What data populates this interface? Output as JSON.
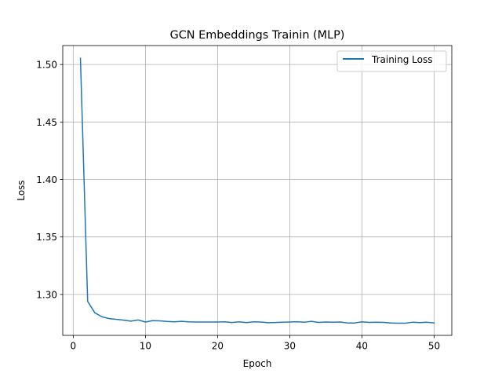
{
  "chart_data": {
    "type": "line",
    "title": "GCN Embeddings Trainin (MLP)",
    "xlabel": "Epoch",
    "ylabel": "Loss",
    "xlim": [
      -1.45,
      52.45
    ],
    "ylim": [
      1.2644,
      1.5165
    ],
    "xticks": [
      0,
      10,
      20,
      30,
      40,
      50
    ],
    "yticks": [
      1.3,
      1.35,
      1.4,
      1.45,
      1.5
    ],
    "xtick_labels": [
      "0",
      "10",
      "20",
      "30",
      "40",
      "50"
    ],
    "ytick_labels": [
      "1.30",
      "1.35",
      "1.40",
      "1.45",
      "1.50"
    ],
    "grid": true,
    "legend_position": "top-right",
    "series": [
      {
        "name": "Training Loss",
        "color": "#1f77b4",
        "x": [
          1,
          2,
          3,
          4,
          5,
          6,
          7,
          8,
          9,
          10,
          11,
          12,
          13,
          14,
          15,
          16,
          17,
          18,
          19,
          20,
          21,
          22,
          23,
          24,
          25,
          26,
          27,
          28,
          29,
          30,
          31,
          32,
          33,
          34,
          35,
          36,
          37,
          38,
          39,
          40,
          41,
          42,
          43,
          44,
          45,
          46,
          47,
          48,
          49,
          50
        ],
        "y": [
          1.5055,
          1.294,
          1.284,
          1.2805,
          1.279,
          1.2783,
          1.2776,
          1.2768,
          1.2778,
          1.276,
          1.2772,
          1.277,
          1.2765,
          1.2762,
          1.2766,
          1.2762,
          1.276,
          1.276,
          1.276,
          1.276,
          1.2762,
          1.2756,
          1.2762,
          1.2755,
          1.2762,
          1.276,
          1.2754,
          1.2756,
          1.2758,
          1.276,
          1.2763,
          1.2758,
          1.2766,
          1.2757,
          1.276,
          1.2758,
          1.276,
          1.2752,
          1.2752,
          1.2762,
          1.2757,
          1.2758,
          1.2757,
          1.2752,
          1.275,
          1.275,
          1.2758,
          1.2755,
          1.2758,
          1.2752
        ]
      }
    ]
  }
}
